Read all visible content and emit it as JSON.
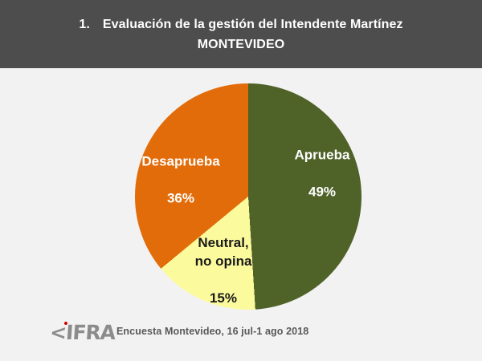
{
  "header": {
    "number": "1.",
    "title_line1": "Evaluación de la gestión del Intendente Martínez",
    "title_line2": "MONTEVIDEO"
  },
  "chart_data": {
    "type": "pie",
    "title": "Evaluación de la gestión del Intendente Martínez",
    "subtitle": "MONTEVIDEO",
    "start_angle_deg": 0,
    "direction": "clockwise",
    "legend": "none",
    "labels_on_slices": true,
    "slices": [
      {
        "label": "Aprueba",
        "label_display": "Aprueba",
        "value": 49,
        "pct_label": "49%",
        "color": "#4F6228",
        "label_color": "#FFFFFF"
      },
      {
        "label": "Neutral, no opina",
        "label_display": "Neutral,\nno opina",
        "value": 15,
        "pct_label": "15%",
        "color": "#FBFB9D",
        "label_color": "#1A1A1A"
      },
      {
        "label": "Desaprueba",
        "label_display": "Desaprueba",
        "value": 36,
        "pct_label": "36%",
        "color": "#E36C0A",
        "label_color": "#FFFFFF"
      }
    ]
  },
  "footer": {
    "logo_mark": "<",
    "logo_text": "IFRA",
    "caption": "Encuesta Montevideo, 16 jul-1 ago 2018"
  },
  "colors": {
    "header_background": "#4D4D4D",
    "header_text": "#FFFFFF",
    "body_background": "#F2F2F2",
    "caption_text": "#595959",
    "logo_gray": "#8C8C8C",
    "logo_dot_red": "#CC0000"
  }
}
